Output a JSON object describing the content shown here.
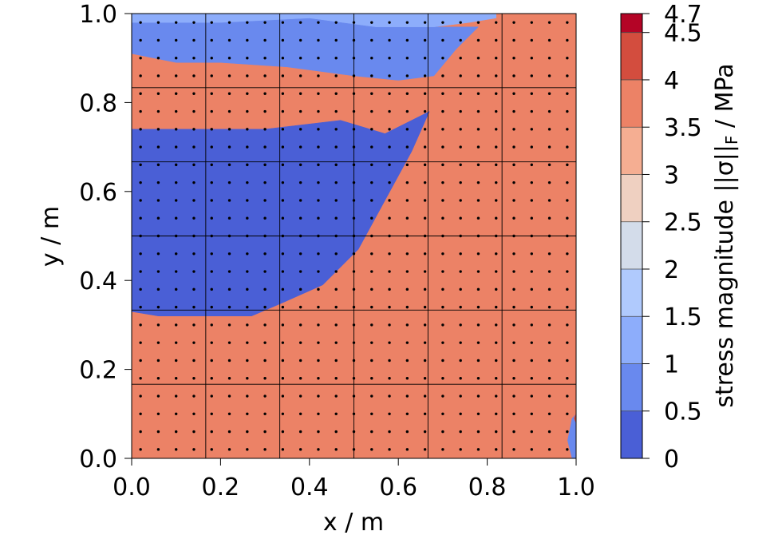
{
  "chart_data": {
    "type": "heatmap",
    "subtype": "filled-contour",
    "xlabel": "x / m",
    "ylabel": "y / m",
    "xlim": [
      0.0,
      1.0
    ],
    "ylim": [
      0.0,
      1.0
    ],
    "x_ticks": [
      "0.0",
      "0.2",
      "0.4",
      "0.6",
      "0.8",
      "1.0"
    ],
    "y_ticks": [
      "0.0",
      "0.2",
      "0.4",
      "0.6",
      "0.8",
      "1.0"
    ],
    "x_tick_values": [
      0.0,
      0.2,
      0.4,
      0.6,
      0.8,
      1.0
    ],
    "y_tick_values": [
      0.0,
      0.2,
      0.4,
      0.6,
      0.8,
      1.0
    ],
    "colorbar": {
      "label": "stress magnitude ||σ||",
      "label_sub": "F",
      "label_suffix": " / MPa",
      "levels": [
        0,
        0.5,
        1,
        1.5,
        2,
        2.5,
        3,
        3.5,
        4,
        4.5,
        4.7
      ],
      "tick_labels": [
        "0",
        "0.5",
        "1",
        "1.5",
        "2",
        "2.5",
        "3",
        "3.5",
        "4",
        "4.5",
        "4.7"
      ],
      "colors": [
        "#4a5fd6",
        "#6989ee",
        "#8dadfb",
        "#b0cafd",
        "#d3dcea",
        "#efd0c1",
        "#f5ae92",
        "#ec8266",
        "#d34d3e",
        "#b40426"
      ]
    },
    "mesh_lines": {
      "x": [
        0.1667,
        0.3333,
        0.5,
        0.6667,
        0.8333
      ],
      "y": [
        0.1667,
        0.3333,
        0.5,
        0.6667,
        0.8333
      ]
    },
    "sample_points": {
      "x_count": 25,
      "y_count": 25,
      "range": [
        0.0,
        1.0
      ]
    },
    "regions": [
      {
        "level": 1,
        "polygon": [
          [
            0,
            0
          ],
          [
            0.52,
            0
          ],
          [
            0.56,
            0.18
          ],
          [
            0.61,
            0.38
          ],
          [
            0.68,
            0.55
          ],
          [
            0.74,
            0.68
          ],
          [
            0.82,
            0.76
          ],
          [
            0.87,
            0.83
          ],
          [
            0.88,
            0.93
          ],
          [
            0.86,
            0.97
          ],
          [
            0.8,
            1
          ],
          [
            0,
            1
          ]
        ]
      },
      {
        "level": 2,
        "polygon": [
          [
            0,
            0
          ],
          [
            0.7,
            0
          ],
          [
            0.72,
            0.18
          ],
          [
            0.76,
            0.35
          ],
          [
            0.8,
            0.5
          ],
          [
            0.85,
            0.64
          ],
          [
            0.88,
            0.76
          ],
          [
            0.91,
            0.88
          ],
          [
            0.92,
            0.97
          ],
          [
            0.9,
            1
          ],
          [
            0,
            1
          ]
        ]
      },
      {
        "level": 3,
        "polygon": [
          [
            0,
            0
          ],
          [
            0.82,
            0
          ],
          [
            0.87,
            0.14
          ],
          [
            0.9,
            0.27
          ],
          [
            0.93,
            0.42
          ],
          [
            0.95,
            0.54
          ],
          [
            0.97,
            0.66
          ],
          [
            0.99,
            0.81
          ],
          [
            1,
            0.86
          ],
          [
            1,
            1
          ],
          [
            0,
            1
          ]
        ]
      },
      {
        "level": 4,
        "polygon": [
          [
            0,
            0
          ],
          [
            0.92,
            0
          ],
          [
            0.93,
            0.13
          ],
          [
            0.96,
            0.25
          ],
          [
            0.99,
            0.35
          ],
          [
            1,
            0.38
          ],
          [
            1,
            1
          ],
          [
            0,
            1
          ]
        ]
      },
      {
        "level": 5,
        "polygon": [
          [
            0,
            0
          ],
          [
            0.96,
            0
          ],
          [
            0.95,
            0.1
          ],
          [
            0.98,
            0.18
          ],
          [
            1,
            0.21
          ],
          [
            1,
            1
          ],
          [
            0,
            1
          ]
        ]
      },
      {
        "level": 6,
        "polygon": [
          [
            0,
            0
          ],
          [
            0.97,
            0
          ],
          [
            0.97,
            0.07
          ],
          [
            0.99,
            0.12
          ],
          [
            1,
            0.13
          ],
          [
            1,
            1
          ],
          [
            0,
            1
          ]
        ]
      },
      {
        "level": 7,
        "polygon": [
          [
            0,
            0
          ],
          [
            0.99,
            0
          ],
          [
            0.98,
            0.04
          ],
          [
            0.99,
            0.09
          ],
          [
            1,
            0.1
          ],
          [
            1,
            1
          ],
          [
            0,
            1
          ]
        ]
      },
      {
        "level": 8,
        "polygon": [
          [
            1,
            0.08
          ],
          [
            0.995,
            0.09
          ],
          [
            1,
            0.1
          ]
        ]
      },
      {
        "level": 0,
        "polygon": [
          [
            0,
            0.33
          ],
          [
            0.06,
            0.32
          ],
          [
            0.12,
            0.32
          ],
          [
            0.2,
            0.32
          ],
          [
            0.27,
            0.32
          ],
          [
            0.34,
            0.35
          ],
          [
            0.43,
            0.39
          ],
          [
            0.51,
            0.47
          ],
          [
            0.57,
            0.58
          ],
          [
            0.63,
            0.69
          ],
          [
            0.67,
            0.78
          ],
          [
            0.57,
            0.73
          ],
          [
            0.47,
            0.76
          ],
          [
            0.3,
            0.74
          ],
          [
            0.14,
            0.74
          ],
          [
            0,
            0.74
          ]
        ]
      },
      {
        "level": 1,
        "polygon": [
          [
            0,
            0.91
          ],
          [
            0.1,
            0.89
          ],
          [
            0.2,
            0.89
          ],
          [
            0.35,
            0.88
          ],
          [
            0.5,
            0.86
          ],
          [
            0.6,
            0.85
          ],
          [
            0.68,
            0.86
          ],
          [
            0.73,
            0.92
          ],
          [
            0.78,
            0.97
          ],
          [
            0.66,
            0.97
          ],
          [
            0.45,
            1
          ],
          [
            0,
            1
          ]
        ]
      },
      {
        "level": 2,
        "polygon": [
          [
            0,
            0.98
          ],
          [
            0.2,
            0.98
          ],
          [
            0.4,
            0.99
          ],
          [
            0.55,
            0.97
          ],
          [
            0.68,
            0.97
          ],
          [
            0.76,
            0.98
          ],
          [
            0.82,
            0.99
          ],
          [
            0.82,
            1
          ],
          [
            0,
            1
          ]
        ]
      }
    ]
  }
}
